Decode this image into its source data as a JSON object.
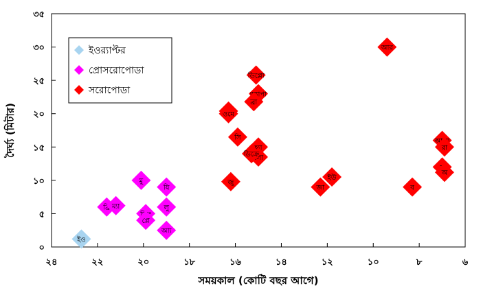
{
  "chart_data": {
    "type": "scatter",
    "title": "",
    "xlabel": "সময়কাল (কোটি বছর আগে)",
    "ylabel": "দৈর্ঘ্য (মিটার)",
    "xlim": [
      24,
      6
    ],
    "ylim": [
      0,
      35
    ],
    "x_reversed": true,
    "xticks": [
      24,
      22,
      20,
      18,
      16,
      14,
      12,
      10,
      8,
      6
    ],
    "xtick_labels": [
      "২৪",
      "২২",
      "২০",
      "১৮",
      "১৬",
      "১৪",
      "১২",
      "১০",
      "৮",
      "৬"
    ],
    "yticks": [
      0,
      5,
      10,
      15,
      20,
      25,
      30,
      35
    ],
    "ytick_labels": [
      "০",
      "৫",
      "১০",
      "১৫",
      "২০",
      "২৫",
      "৩০",
      "৩৫"
    ],
    "grid": false,
    "legend_position": "top-left",
    "marker": "diamond",
    "series": [
      {
        "name": "ইওর‍্যাপ্টর",
        "color": "#a8d4f0",
        "points": [
          {
            "x": 22.7,
            "y": 1.2,
            "label": "ইও"
          }
        ]
      },
      {
        "name": "প্রোসরোপোডা",
        "color": "#ff00ff",
        "points": [
          {
            "x": 21.6,
            "y": 6.0,
            "label": "ব্রি"
          },
          {
            "x": 21.2,
            "y": 6.2,
            "label": "ম্যা"
          },
          {
            "x": 20.1,
            "y": 10.0,
            "label": "মু"
          },
          {
            "x": 19.9,
            "y": 5.0,
            "label": "জিং"
          },
          {
            "x": 19.9,
            "y": 4.0,
            "label": "প্লে"
          },
          {
            "x": 19.0,
            "y": 9.0,
            "label": "যি"
          },
          {
            "x": 19.0,
            "y": 6.0,
            "label": "লু"
          },
          {
            "x": 19.0,
            "y": 2.5,
            "label": "আ্য"
          }
        ]
      },
      {
        "name": "সরোপোডা",
        "color": "#ff0000",
        "points": [
          {
            "x": 9.4,
            "y": 30.0,
            "label": "আর"
          },
          {
            "x": 15.1,
            "y": 25.8,
            "label": "ডিপ্লো"
          },
          {
            "x": 15.0,
            "y": 23.0,
            "label": "অ্যাপা"
          },
          {
            "x": 15.2,
            "y": 21.8,
            "label": "ব্রা"
          },
          {
            "x": 16.3,
            "y": 20.4,
            "label": "মা"
          },
          {
            "x": 16.3,
            "y": 20.0,
            "label": "ওমে"
          },
          {
            "x": 15.9,
            "y": 16.5,
            "label": "সি"
          },
          {
            "x": 15.0,
            "y": 15.0,
            "label": "হ্যা"
          },
          {
            "x": 15.0,
            "y": 13.5,
            "label": "লো"
          },
          {
            "x": 15.3,
            "y": 14.0,
            "label": "ডিক্রে"
          },
          {
            "x": 16.2,
            "y": 9.8,
            "label": "জু"
          },
          {
            "x": 11.8,
            "y": 10.5,
            "label": "ইউ"
          },
          {
            "x": 12.3,
            "y": 9.0,
            "label": "জা"
          },
          {
            "x": 8.3,
            "y": 9.0,
            "label": "ব"
          },
          {
            "x": 7.0,
            "y": 16.0,
            "label": "আলা"
          },
          {
            "x": 6.9,
            "y": 15.0,
            "label": "রা"
          },
          {
            "x": 7.0,
            "y": 12.0,
            "label": "স"
          },
          {
            "x": 6.9,
            "y": 11.2,
            "label": "অ"
          }
        ]
      }
    ]
  }
}
